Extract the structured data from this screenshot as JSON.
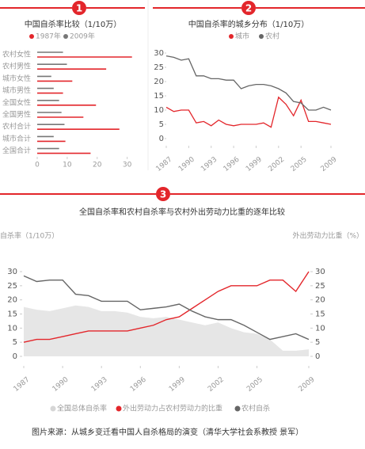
{
  "chart_data": [
    {
      "type": "hbar",
      "badge": "1",
      "title": "中国自杀率比较（1/10万）",
      "categories": [
        "农村女性",
        "农村男性",
        "城市女性",
        "城市男性",
        "全国女性",
        "全国男性",
        "农村合计",
        "城市合计",
        "全国合计"
      ],
      "series": [
        {
          "name": "1987年",
          "color": "#e3262b",
          "values": [
            31.6,
            23,
            11.7,
            8.6,
            19.6,
            15.4,
            27.4,
            9.4,
            17.8
          ]
        },
        {
          "name": "2009年",
          "color": "#777777",
          "values": [
            8.6,
            9.9,
            4.7,
            5.5,
            7.3,
            8.1,
            9.1,
            5.5,
            7.3
          ]
        }
      ],
      "xlim": [
        0,
        33
      ],
      "xticks": [
        0,
        10,
        20,
        30
      ]
    },
    {
      "type": "line",
      "badge": "2",
      "title": "中国自杀率的城乡分布（1/10万）",
      "x": [
        1987,
        1988,
        1989,
        1990,
        1991,
        1992,
        1993,
        1994,
        1995,
        1996,
        1997,
        1998,
        1999,
        2000,
        2001,
        2002,
        2003,
        2004,
        2005,
        2006,
        2007,
        2008,
        2009
      ],
      "series": [
        {
          "name": "城市",
          "color": "#e3262b",
          "values": [
            11,
            9.5,
            10,
            10,
            5.5,
            6,
            4.5,
            6.5,
            5,
            4.5,
            5,
            5,
            5,
            5.5,
            4,
            14.5,
            12,
            8,
            13.5,
            6,
            6,
            5.5,
            5
          ]
        },
        {
          "name": "农村",
          "color": "#666666",
          "values": [
            29,
            28.5,
            27.5,
            28,
            22,
            22,
            21,
            21,
            20.5,
            20.5,
            17.5,
            18.5,
            19,
            19,
            18.5,
            17.5,
            16,
            13,
            12.5,
            10,
            10,
            11,
            10
          ]
        }
      ],
      "xlim": [
        1987,
        2009
      ],
      "xticks": [
        1987,
        1990,
        1993,
        1996,
        1999,
        2002,
        2005,
        2009
      ],
      "ylim": [
        0,
        30
      ],
      "yticks": [
        0,
        5,
        10,
        15,
        20,
        25,
        30
      ]
    },
    {
      "type": "combo",
      "badge": "3",
      "title": "全国自杀率和农村自杀率与农村外出劳动力比重的逐年比较",
      "ylabel": "自杀率（1/10万）",
      "y2label": "外出劳动力比重（%）",
      "x": [
        1987,
        1988,
        1989,
        1990,
        1991,
        1992,
        1993,
        1994,
        1995,
        1996,
        1997,
        1998,
        1999,
        2000,
        2001,
        2002,
        2003,
        2004,
        2005,
        2006,
        2007,
        2008,
        2009
      ],
      "series": [
        {
          "name": "全国总体自杀率",
          "kind": "area",
          "color": "#e6e6e6",
          "values": [
            17.5,
            16.5,
            16,
            17,
            18,
            17.5,
            16,
            16,
            15.5,
            14,
            13.5,
            14,
            13,
            12,
            11,
            12,
            10,
            8.5,
            8,
            6,
            2,
            2,
            2.5
          ]
        },
        {
          "name": "外出劳动力占农村劳动力的比重",
          "kind": "line",
          "axis": "y2",
          "color": "#e3262b",
          "values": [
            5,
            6,
            6,
            7,
            8,
            9,
            9,
            9,
            9,
            10,
            11,
            13,
            14,
            17,
            20,
            23,
            25,
            25,
            25,
            27,
            27,
            23,
            30
          ]
        },
        {
          "name": "农村自杀",
          "kind": "line",
          "color": "#666666",
          "values": [
            28.5,
            26.5,
            27,
            27,
            22,
            21.5,
            19.5,
            19.5,
            19.5,
            16.5,
            17,
            17.5,
            18.5,
            16,
            14,
            13,
            13,
            11,
            8.5,
            6,
            7,
            8,
            6
          ]
        }
      ],
      "xlim": [
        1987,
        2009
      ],
      "xticks": [
        1987,
        1990,
        1993,
        1996,
        1999,
        2002,
        2005,
        2009
      ],
      "ylim": [
        0,
        30
      ],
      "yticks": [
        0,
        5,
        10,
        15,
        20,
        25,
        30
      ],
      "y2lim": [
        0,
        30
      ],
      "y2ticks": [
        0,
        5,
        10,
        15,
        20,
        25,
        30
      ]
    }
  ],
  "source": "图片来源：从城乡变迁看中国人自杀格局的演变（清华大学社会系教授 景军）"
}
